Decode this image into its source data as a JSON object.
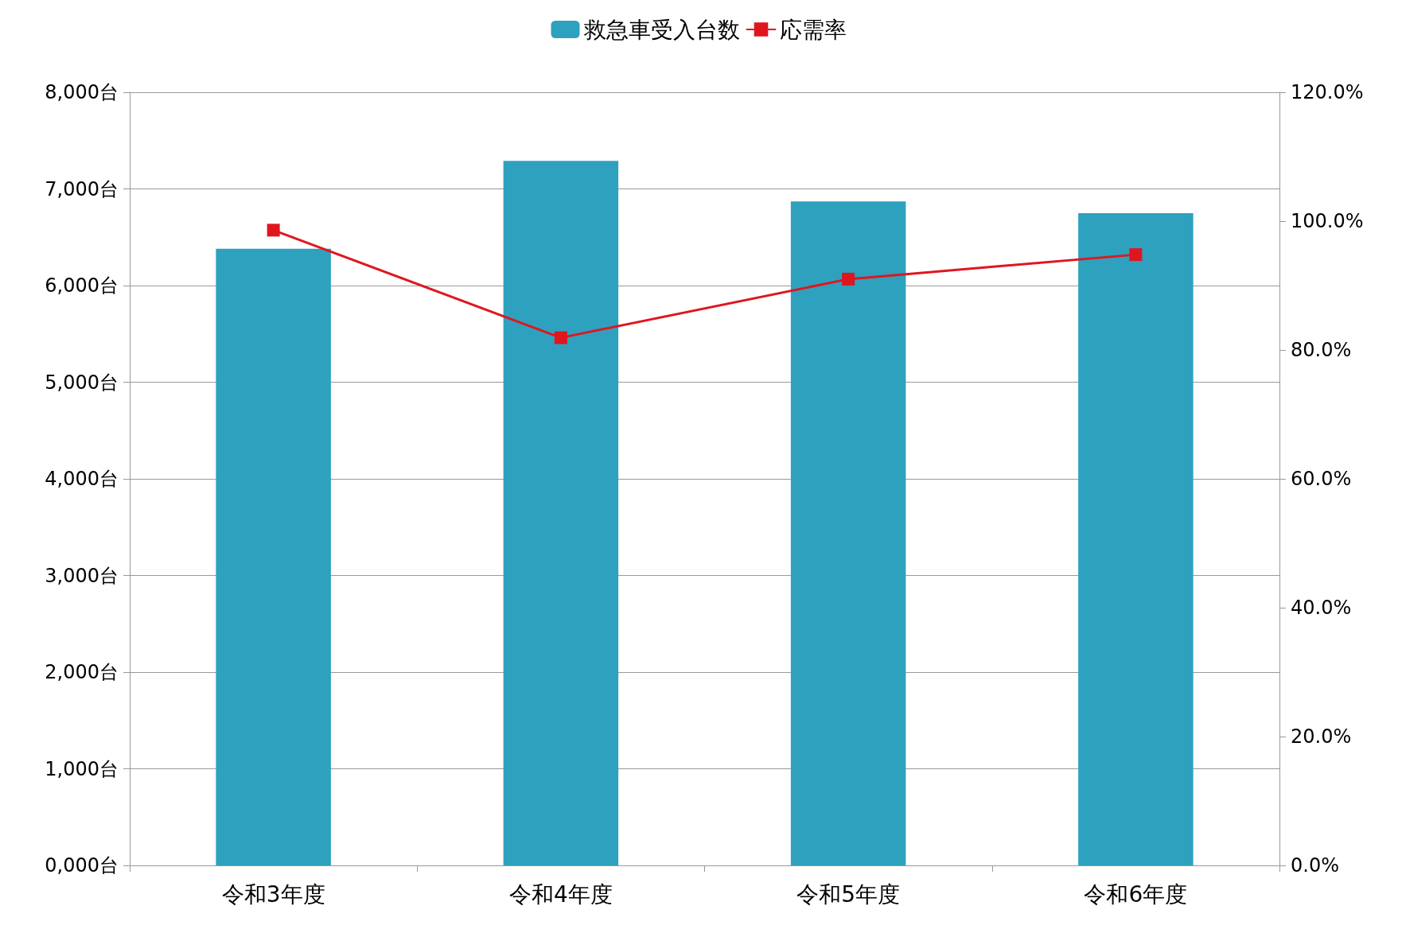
{
  "chart_data": {
    "type": "bar",
    "categories": [
      "令和3年度",
      "令和4年度",
      "令和5年度",
      "令和6年度"
    ],
    "series": [
      {
        "name": "救急車受入台数",
        "color": "#2ea1bf",
        "values": [
          6380,
          7290,
          6870,
          6750
        ]
      },
      {
        "name": "応需率",
        "type": "line",
        "axis": "y2",
        "color": "#e0161f",
        "values": [
          98.6,
          81.9,
          91.0,
          94.8
        ]
      }
    ],
    "ylim": [
      0,
      8000
    ],
    "yticks": [
      {
        "value": 0,
        "label": "0,000台"
      },
      {
        "value": 1000,
        "label": "1,000台"
      },
      {
        "value": 2000,
        "label": "2,000台"
      },
      {
        "value": 3000,
        "label": "3,000台"
      },
      {
        "value": 4000,
        "label": "4,000台"
      },
      {
        "value": 5000,
        "label": "5,000台"
      },
      {
        "value": 6000,
        "label": "6,000台"
      },
      {
        "value": 7000,
        "label": "7,000台"
      },
      {
        "value": 8000,
        "label": "8,000台"
      }
    ],
    "y2lim": [
      0,
      120
    ],
    "y2ticks": [
      {
        "value": 0,
        "label": "0.0%"
      },
      {
        "value": 20,
        "label": "20.0%"
      },
      {
        "value": 40,
        "label": "40.0%"
      },
      {
        "value": 60,
        "label": "60.0%"
      },
      {
        "value": 80,
        "label": "80.0%"
      },
      {
        "value": 100,
        "label": "100.0%"
      },
      {
        "value": 120,
        "label": "120.0%"
      }
    ],
    "grid": "y",
    "legend": "top",
    "marker": "square",
    "line_style": "solid"
  }
}
